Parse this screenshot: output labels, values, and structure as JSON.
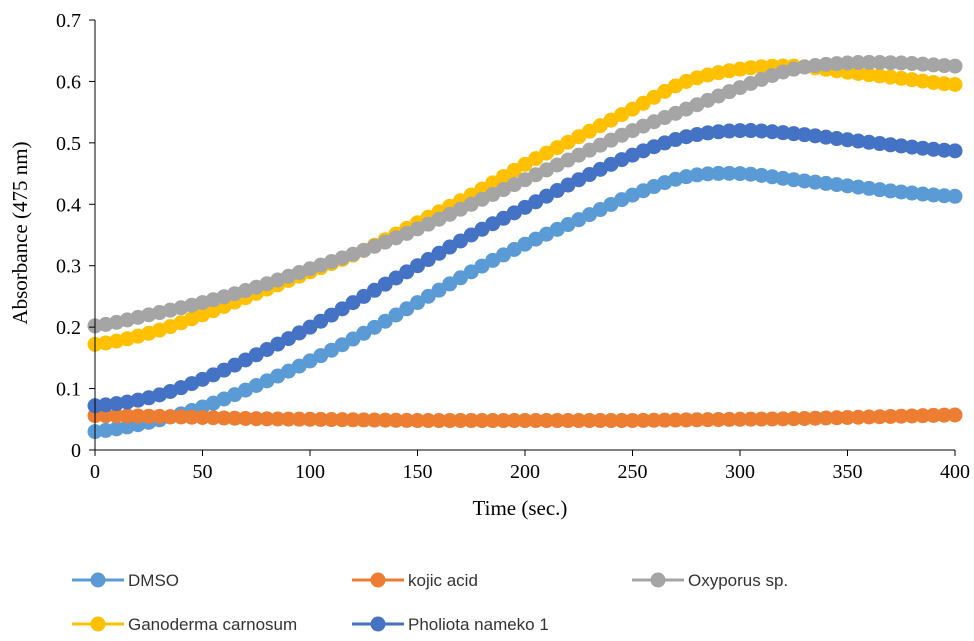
{
  "chart_data": {
    "type": "line",
    "xlabel": "Time (sec.)",
    "ylabel": "Absorbance (475 nm)",
    "xlim": [
      0,
      400
    ],
    "ylim": [
      0,
      0.7
    ],
    "xticks": [
      "0",
      "50",
      "100",
      "150",
      "200",
      "250",
      "300",
      "350",
      "400"
    ],
    "yticks": [
      "0",
      "0.1",
      "0.2",
      "0.3",
      "0.4",
      "0.5",
      "0.6",
      "0.7"
    ],
    "grid": false,
    "legend_position": "bottom",
    "marker": "circle",
    "x": [
      0,
      25,
      50,
      75,
      100,
      125,
      150,
      175,
      200,
      225,
      250,
      275,
      300,
      325,
      350,
      375,
      400
    ],
    "series": [
      {
        "name": "DMSO",
        "color": "#5B9BD5",
        "values": [
          0.03,
          0.045,
          0.07,
          0.105,
          0.145,
          0.19,
          0.24,
          0.29,
          0.335,
          0.375,
          0.415,
          0.445,
          0.45,
          0.44,
          0.43,
          0.42,
          0.413
        ]
      },
      {
        "name": "kojic acid",
        "color": "#ED7D31",
        "values": [
          0.056,
          0.055,
          0.053,
          0.051,
          0.05,
          0.049,
          0.048,
          0.048,
          0.048,
          0.048,
          0.048,
          0.049,
          0.05,
          0.051,
          0.053,
          0.055,
          0.057
        ]
      },
      {
        "name": "Oxyporus sp.",
        "color": "#A5A5A5",
        "values": [
          0.202,
          0.22,
          0.24,
          0.265,
          0.295,
          0.325,
          0.36,
          0.4,
          0.44,
          0.48,
          0.52,
          0.555,
          0.59,
          0.62,
          0.63,
          0.63,
          0.625
        ]
      },
      {
        "name": "Ganoderma carnosum",
        "color": "#FFC000",
        "values": [
          0.172,
          0.19,
          0.22,
          0.255,
          0.29,
          0.325,
          0.37,
          0.415,
          0.465,
          0.51,
          0.555,
          0.6,
          0.62,
          0.625,
          0.615,
          0.605,
          0.595
        ]
      },
      {
        "name": "Pholiota nameko 1",
        "color": "#4472C4",
        "values": [
          0.072,
          0.085,
          0.115,
          0.155,
          0.2,
          0.25,
          0.3,
          0.35,
          0.395,
          0.44,
          0.48,
          0.51,
          0.52,
          0.515,
          0.505,
          0.495,
          0.487
        ]
      }
    ]
  }
}
